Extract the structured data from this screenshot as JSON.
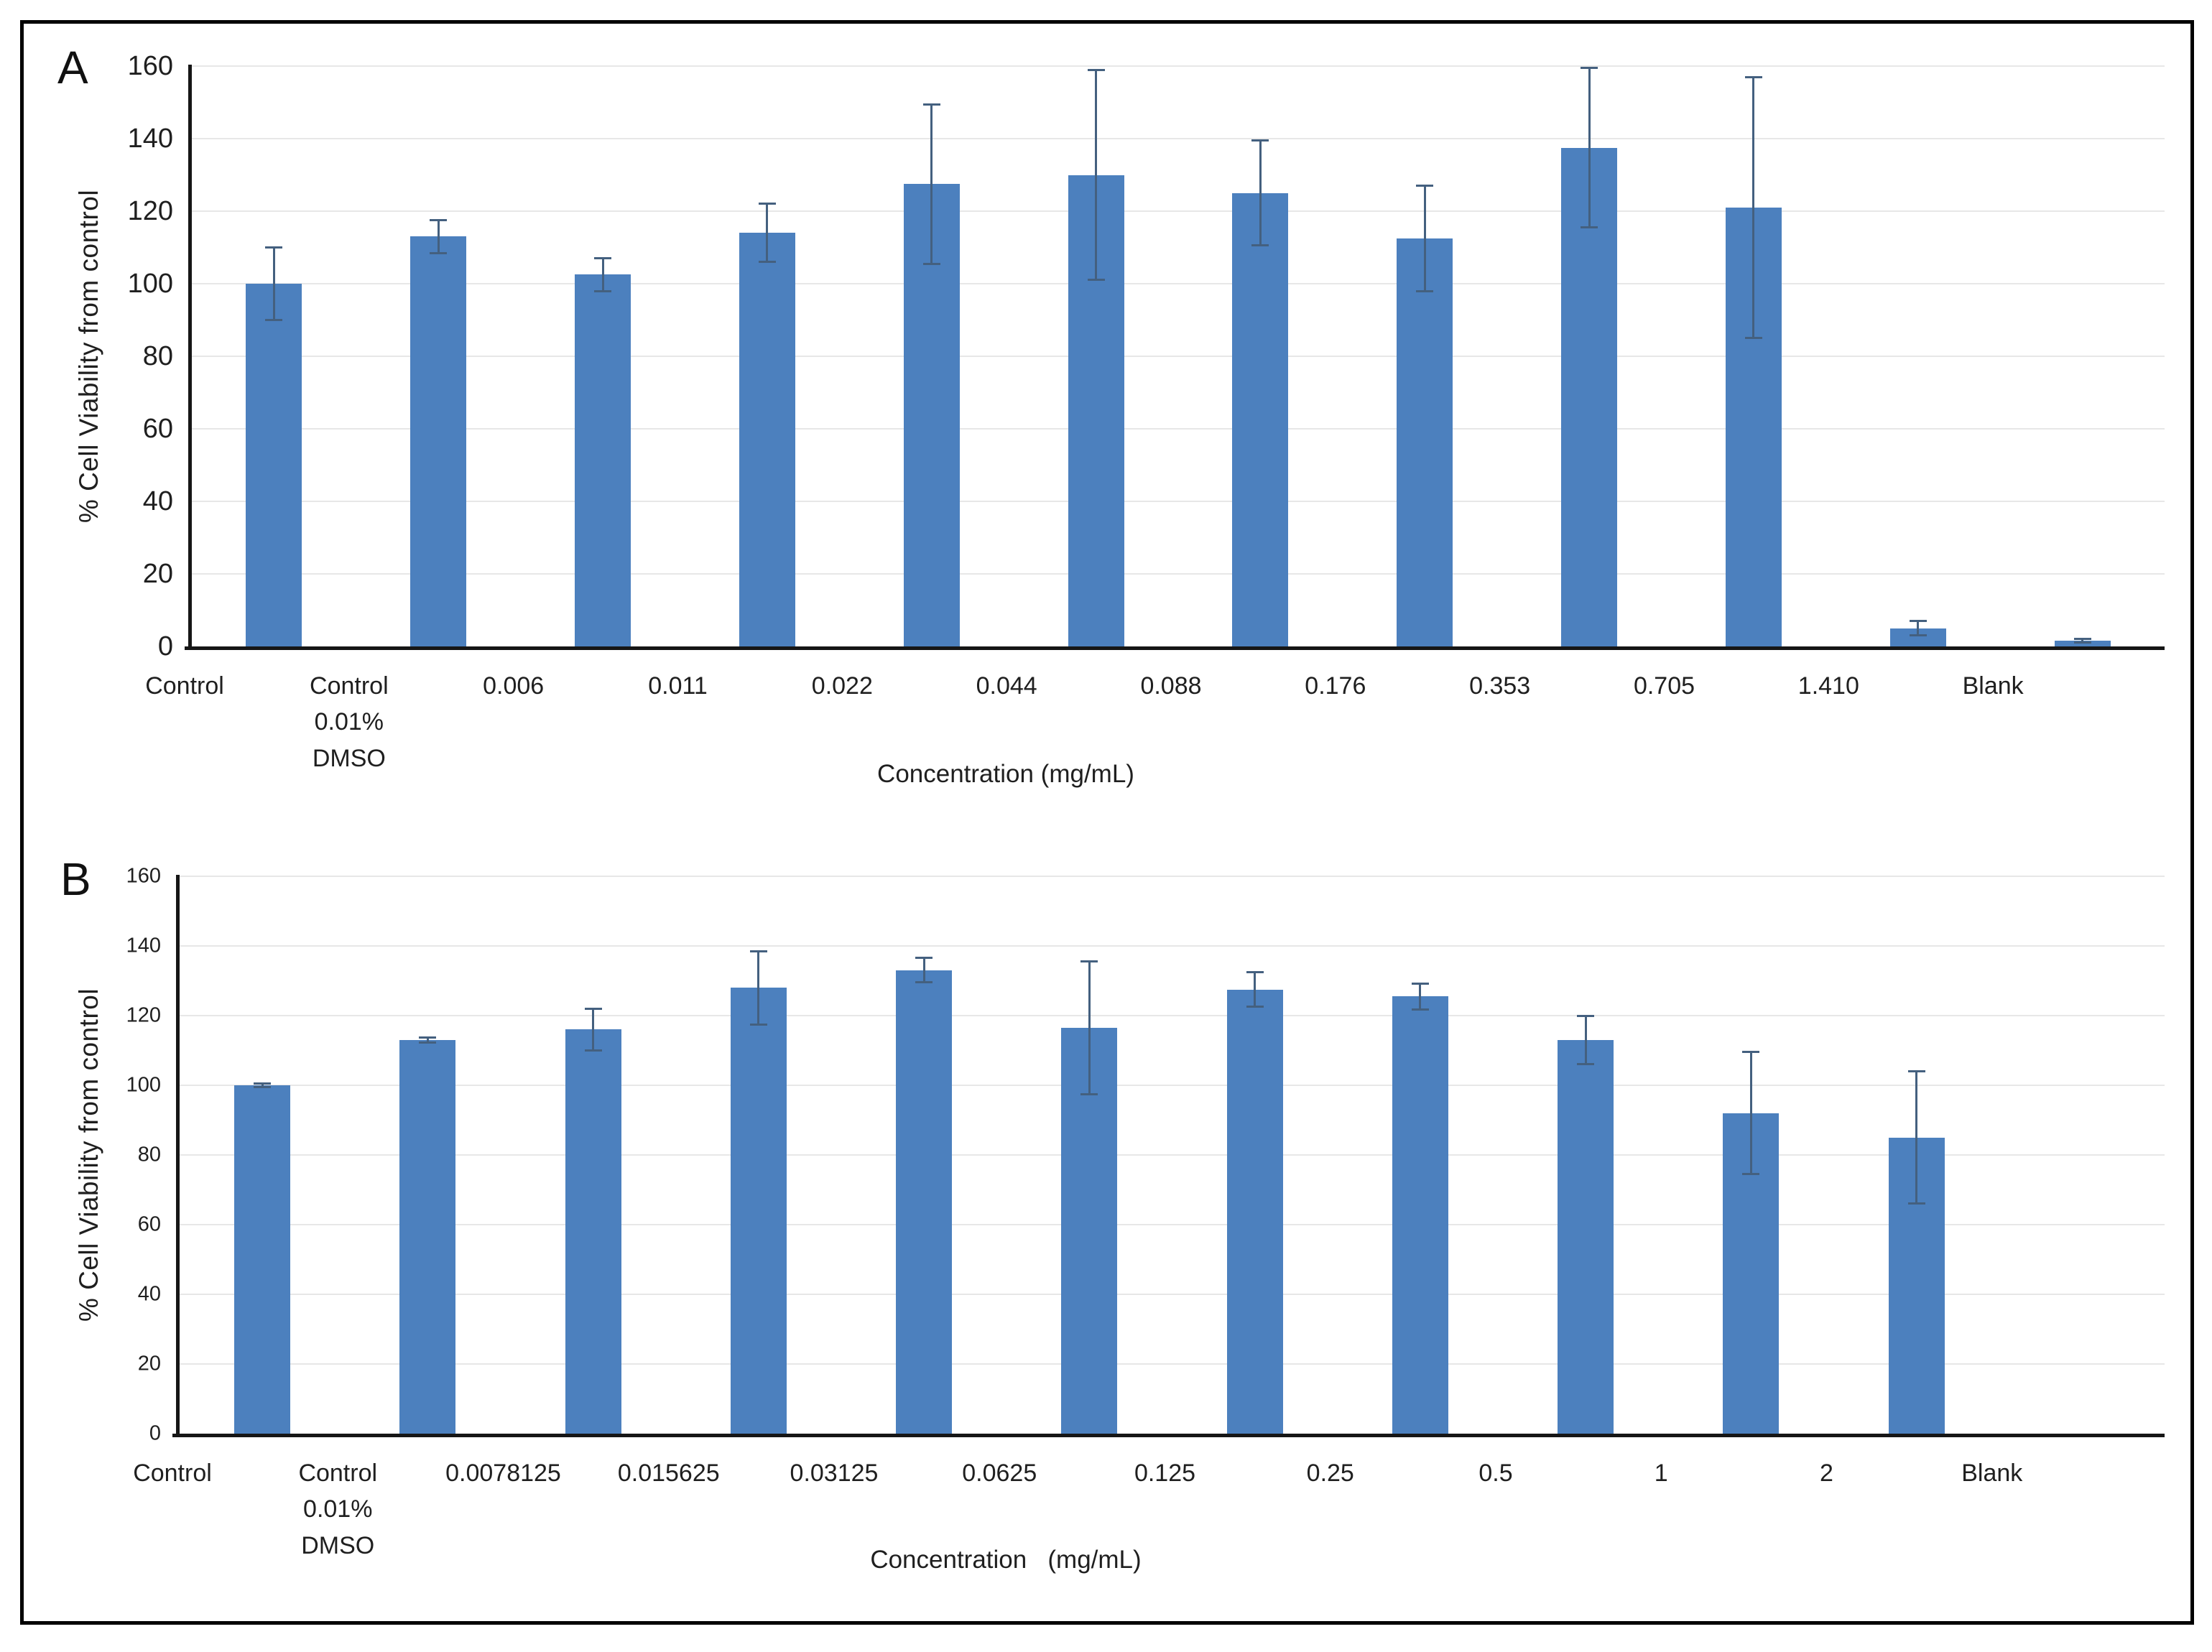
{
  "figure": {
    "background": "#ffffff",
    "border_color": "#000000",
    "text_color": "#1f1f1f"
  },
  "chart_data": [
    {
      "type": "bar",
      "panel_label": "A",
      "title": "",
      "ylabel": "% Cell Viability from control",
      "xlabel": "Concentration (mg/mL)",
      "ylim": [
        0,
        160
      ],
      "yticks": [
        0,
        20,
        40,
        60,
        80,
        100,
        120,
        140,
        160
      ],
      "grid": true,
      "legend": null,
      "categories": [
        "Control",
        "Control\n0.01%\nDMSO",
        "0.006",
        "0.011",
        "0.022",
        "0.044",
        "0.088",
        "0.176",
        "0.353",
        "0.705",
        "1.410",
        "Blank"
      ],
      "values": [
        100,
        113,
        102.5,
        114,
        127.5,
        130,
        125,
        112.5,
        137.5,
        121,
        5,
        1.5
      ],
      "errors": [
        10,
        4.5,
        4.5,
        8,
        22,
        29,
        14.5,
        14.5,
        22,
        36,
        2,
        0.5
      ],
      "bar_color": "#4c80be",
      "error_bar_color": "#44607f",
      "gridline_color": "#e7e7e7",
      "axis_color": "#161616"
    },
    {
      "type": "bar",
      "panel_label": "B",
      "title": "",
      "ylabel": "% Cell Viability from control",
      "xlabel": "Concentration   (mg/mL)",
      "ylim": [
        0,
        160
      ],
      "yticks": [
        0,
        20,
        40,
        60,
        80,
        100,
        120,
        140,
        160
      ],
      "grid": true,
      "legend": null,
      "categories": [
        "Control",
        "Control\n0.01%\nDMSO",
        "0.0078125",
        "0.015625",
        "0.03125",
        "0.0625",
        "0.125",
        "0.25",
        "0.5",
        "1",
        "2",
        "Blank"
      ],
      "values": [
        100,
        113,
        116,
        128,
        133,
        116.5,
        127.5,
        125.5,
        113,
        92,
        85,
        0
      ],
      "errors": [
        0.6,
        0.7,
        6,
        10.5,
        3.5,
        19,
        5,
        3.7,
        7,
        17.5,
        19,
        0
      ],
      "bar_color": "#4c80be",
      "error_bar_color": "#44607f",
      "gridline_color": "#e7e7e7",
      "axis_color": "#161616"
    }
  ]
}
